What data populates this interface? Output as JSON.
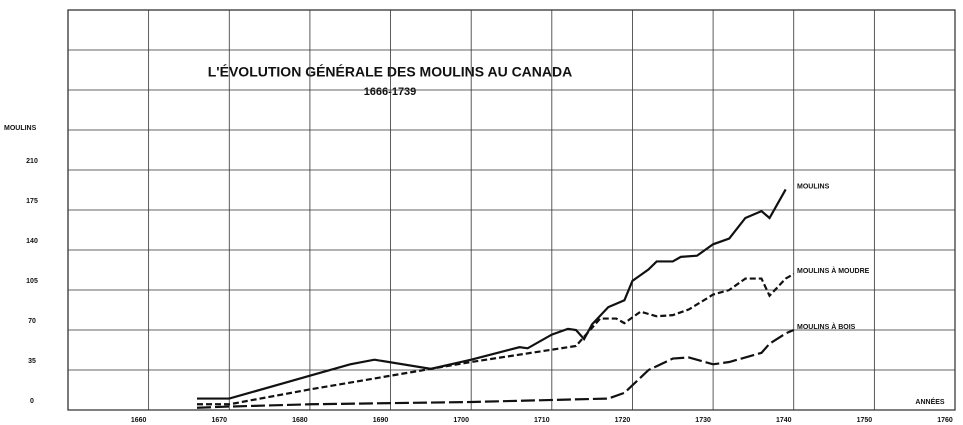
{
  "chart_data": {
    "type": "line",
    "title": "L'ÉVOLUTION GÉNÉRALE DES MOULINS AU CANADA",
    "subtitle": "1666-1739",
    "y_label": "MOULINS",
    "x_label": "ANNÉES",
    "xlim": [
      1650,
      1760
    ],
    "xticks": [
      1660,
      1670,
      1680,
      1690,
      1700,
      1710,
      1720,
      1730,
      1740,
      1750,
      1760
    ],
    "ylim": [
      0,
      350
    ],
    "yticks": [
      0,
      35,
      70,
      105,
      140,
      175,
      210
    ],
    "ygrid": [
      0,
      35,
      70,
      105,
      140,
      175,
      210,
      245,
      280,
      315
    ],
    "grid": true,
    "series": [
      {
        "name": "MOULINS",
        "color": "#111111",
        "dash": "solid",
        "x": [
          1666,
          1670,
          1680,
          1685,
          1688,
          1695,
          1700,
          1706,
          1707,
          1710,
          1712,
          1713,
          1714,
          1715,
          1717,
          1719,
          1720,
          1722,
          1723,
          1725,
          1726,
          1728,
          1730,
          1732,
          1734,
          1736,
          1737,
          1739
        ],
        "values": [
          10,
          10,
          30,
          40,
          44,
          36,
          44,
          55,
          54,
          66,
          71,
          70,
          62,
          75,
          90,
          96,
          113,
          123,
          130,
          130,
          134,
          135,
          145,
          150,
          168,
          174,
          168,
          193
        ]
      },
      {
        "name": "MOULINS À MOUDRE",
        "color": "#111111",
        "dash": "short",
        "x": [
          1666,
          1670,
          1680,
          1690,
          1700,
          1713,
          1716,
          1718,
          1719,
          1721,
          1723,
          1725,
          1727,
          1730,
          1732,
          1734,
          1736,
          1737,
          1739,
          1740
        ],
        "values": [
          5,
          5,
          18,
          30,
          42,
          56,
          80,
          80,
          76,
          86,
          82,
          83,
          88,
          101,
          105,
          115,
          115,
          100,
          115,
          119
        ]
      },
      {
        "name": "MOULINS À BOIS",
        "color": "#111111",
        "dash": "long",
        "x": [
          1666,
          1670,
          1680,
          1700,
          1717,
          1719,
          1722,
          1725,
          1727,
          1730,
          1732,
          1736,
          1737,
          1739,
          1740
        ],
        "values": [
          2,
          3,
          5,
          7,
          10,
          15,
          35,
          45,
          46,
          40,
          42,
          50,
          58,
          67,
          70
        ]
      }
    ]
  }
}
